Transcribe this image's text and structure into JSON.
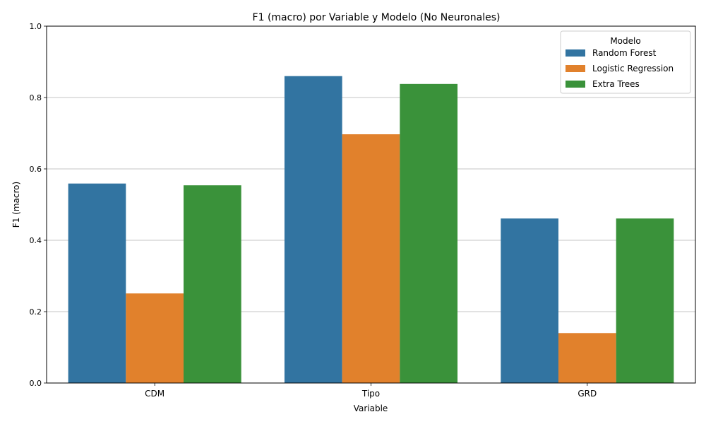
{
  "chart_data": {
    "type": "bar",
    "title": "F1 (macro) por Variable y Modelo (No Neuronales)",
    "xlabel": "Variable",
    "ylabel": "F1 (macro)",
    "ylim": [
      0,
      1.0
    ],
    "yticks": [
      "0.0",
      "0.2",
      "0.4",
      "0.6",
      "0.8",
      "1.0"
    ],
    "grid": "y",
    "legend": {
      "title": "Modelo",
      "position": "top-right"
    },
    "categories": [
      "CDM",
      "Tipo",
      "GRD"
    ],
    "series": [
      {
        "name": "Random Forest",
        "color": "#3274a1",
        "values": [
          0.559,
          0.86,
          0.461
        ]
      },
      {
        "name": "Logistic Regression",
        "color": "#e1812c",
        "values": [
          0.251,
          0.697,
          0.14
        ]
      },
      {
        "name": "Extra Trees",
        "color": "#3a923a",
        "values": [
          0.554,
          0.838,
          0.461
        ]
      }
    ]
  }
}
